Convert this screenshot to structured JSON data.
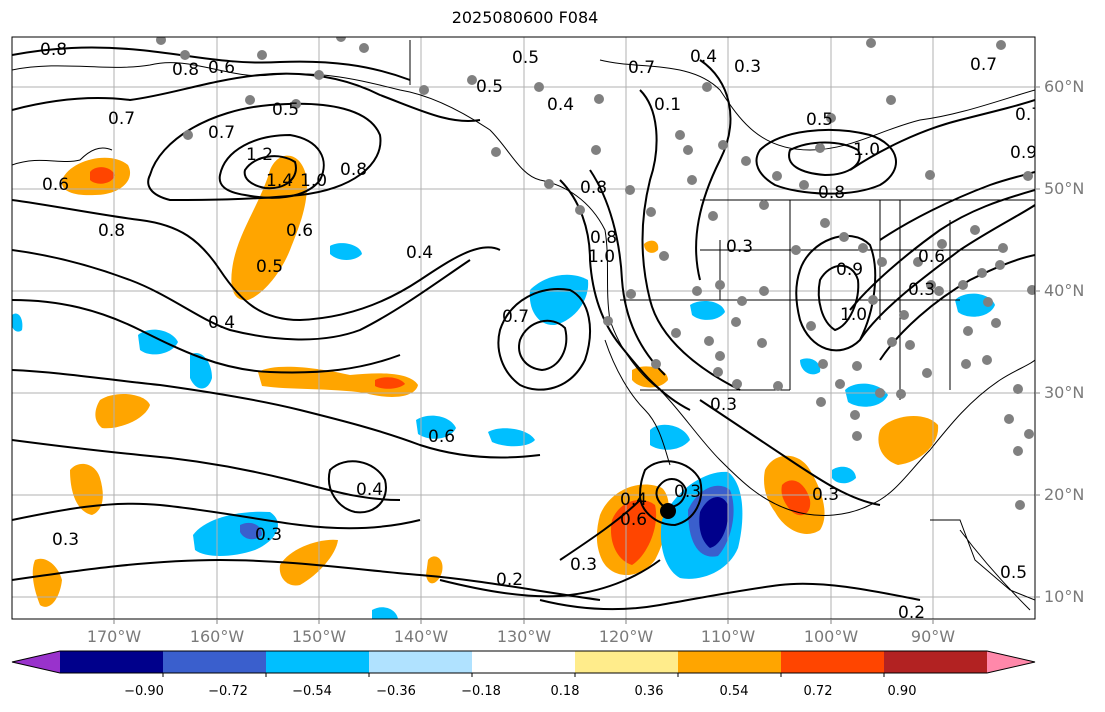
{
  "title": "2025080600 F084",
  "lat_labels": [
    "60°N",
    "50°N",
    "40°N",
    "30°N",
    "20°N",
    "10°N"
  ],
  "lon_labels": [
    "170°W",
    "160°W",
    "150°W",
    "140°W",
    "130°W",
    "120°W",
    "110°W",
    "100°W",
    "90°W"
  ],
  "colorbar": {
    "colors": [
      "#9932cc",
      "#00008b",
      "#3a5fcd",
      "#00bfff",
      "#b0e2ff",
      "#ffffff",
      "#ffec8b",
      "#ffa500",
      "#ff4500",
      "#b22222",
      "#ff88aa"
    ],
    "labels": [
      "−0.90",
      "−0.72",
      "−0.54",
      "−0.36",
      "−0.18",
      "0.18",
      "0.36",
      "0.54",
      "0.72",
      "0.90"
    ]
  },
  "contour_labels": [
    "0.8",
    "0.6",
    "0.7",
    "0.8",
    "0.7",
    "0.5",
    "1.2",
    "1.4",
    "1.0",
    "0.8",
    "0.6",
    "0.5",
    "0.4",
    "0.8",
    "0.4",
    "0.6",
    "0.4",
    "0.5",
    "0.5",
    "0.4",
    "0.7",
    "0.4",
    "0.3",
    "0.1",
    "0.5",
    "1.0",
    "0.8",
    "0.9",
    "0.8",
    "1.0",
    "0.3",
    "0.7",
    "0.9",
    "0.6",
    "0.3",
    "1.0",
    "0.7",
    "0.3",
    "0.4",
    "0.3",
    "0.3",
    "0.3",
    "0.2",
    "0.3",
    "0.3",
    "0.2",
    "0.6",
    "0.8",
    "0.6",
    "0.7",
    "0.5"
  ]
}
